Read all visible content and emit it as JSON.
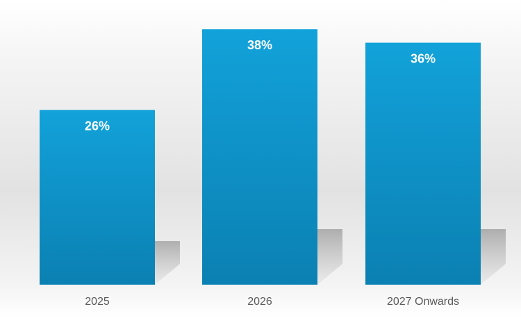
{
  "chart_data": {
    "type": "bar",
    "categories": [
      "2025",
      "2026",
      "2027 Onwards"
    ],
    "values": [
      26,
      38,
      36
    ],
    "value_labels": [
      "26%",
      "38%",
      "36%"
    ],
    "title": "",
    "xlabel": "",
    "ylabel": "",
    "ylim": [
      0,
      40
    ],
    "grid": false,
    "legend": "none",
    "colors": {
      "bar_top": "#12a2da",
      "bar_bottom": "#0b80b2",
      "label_text": "#ffffff",
      "category_text": "#595959"
    }
  }
}
